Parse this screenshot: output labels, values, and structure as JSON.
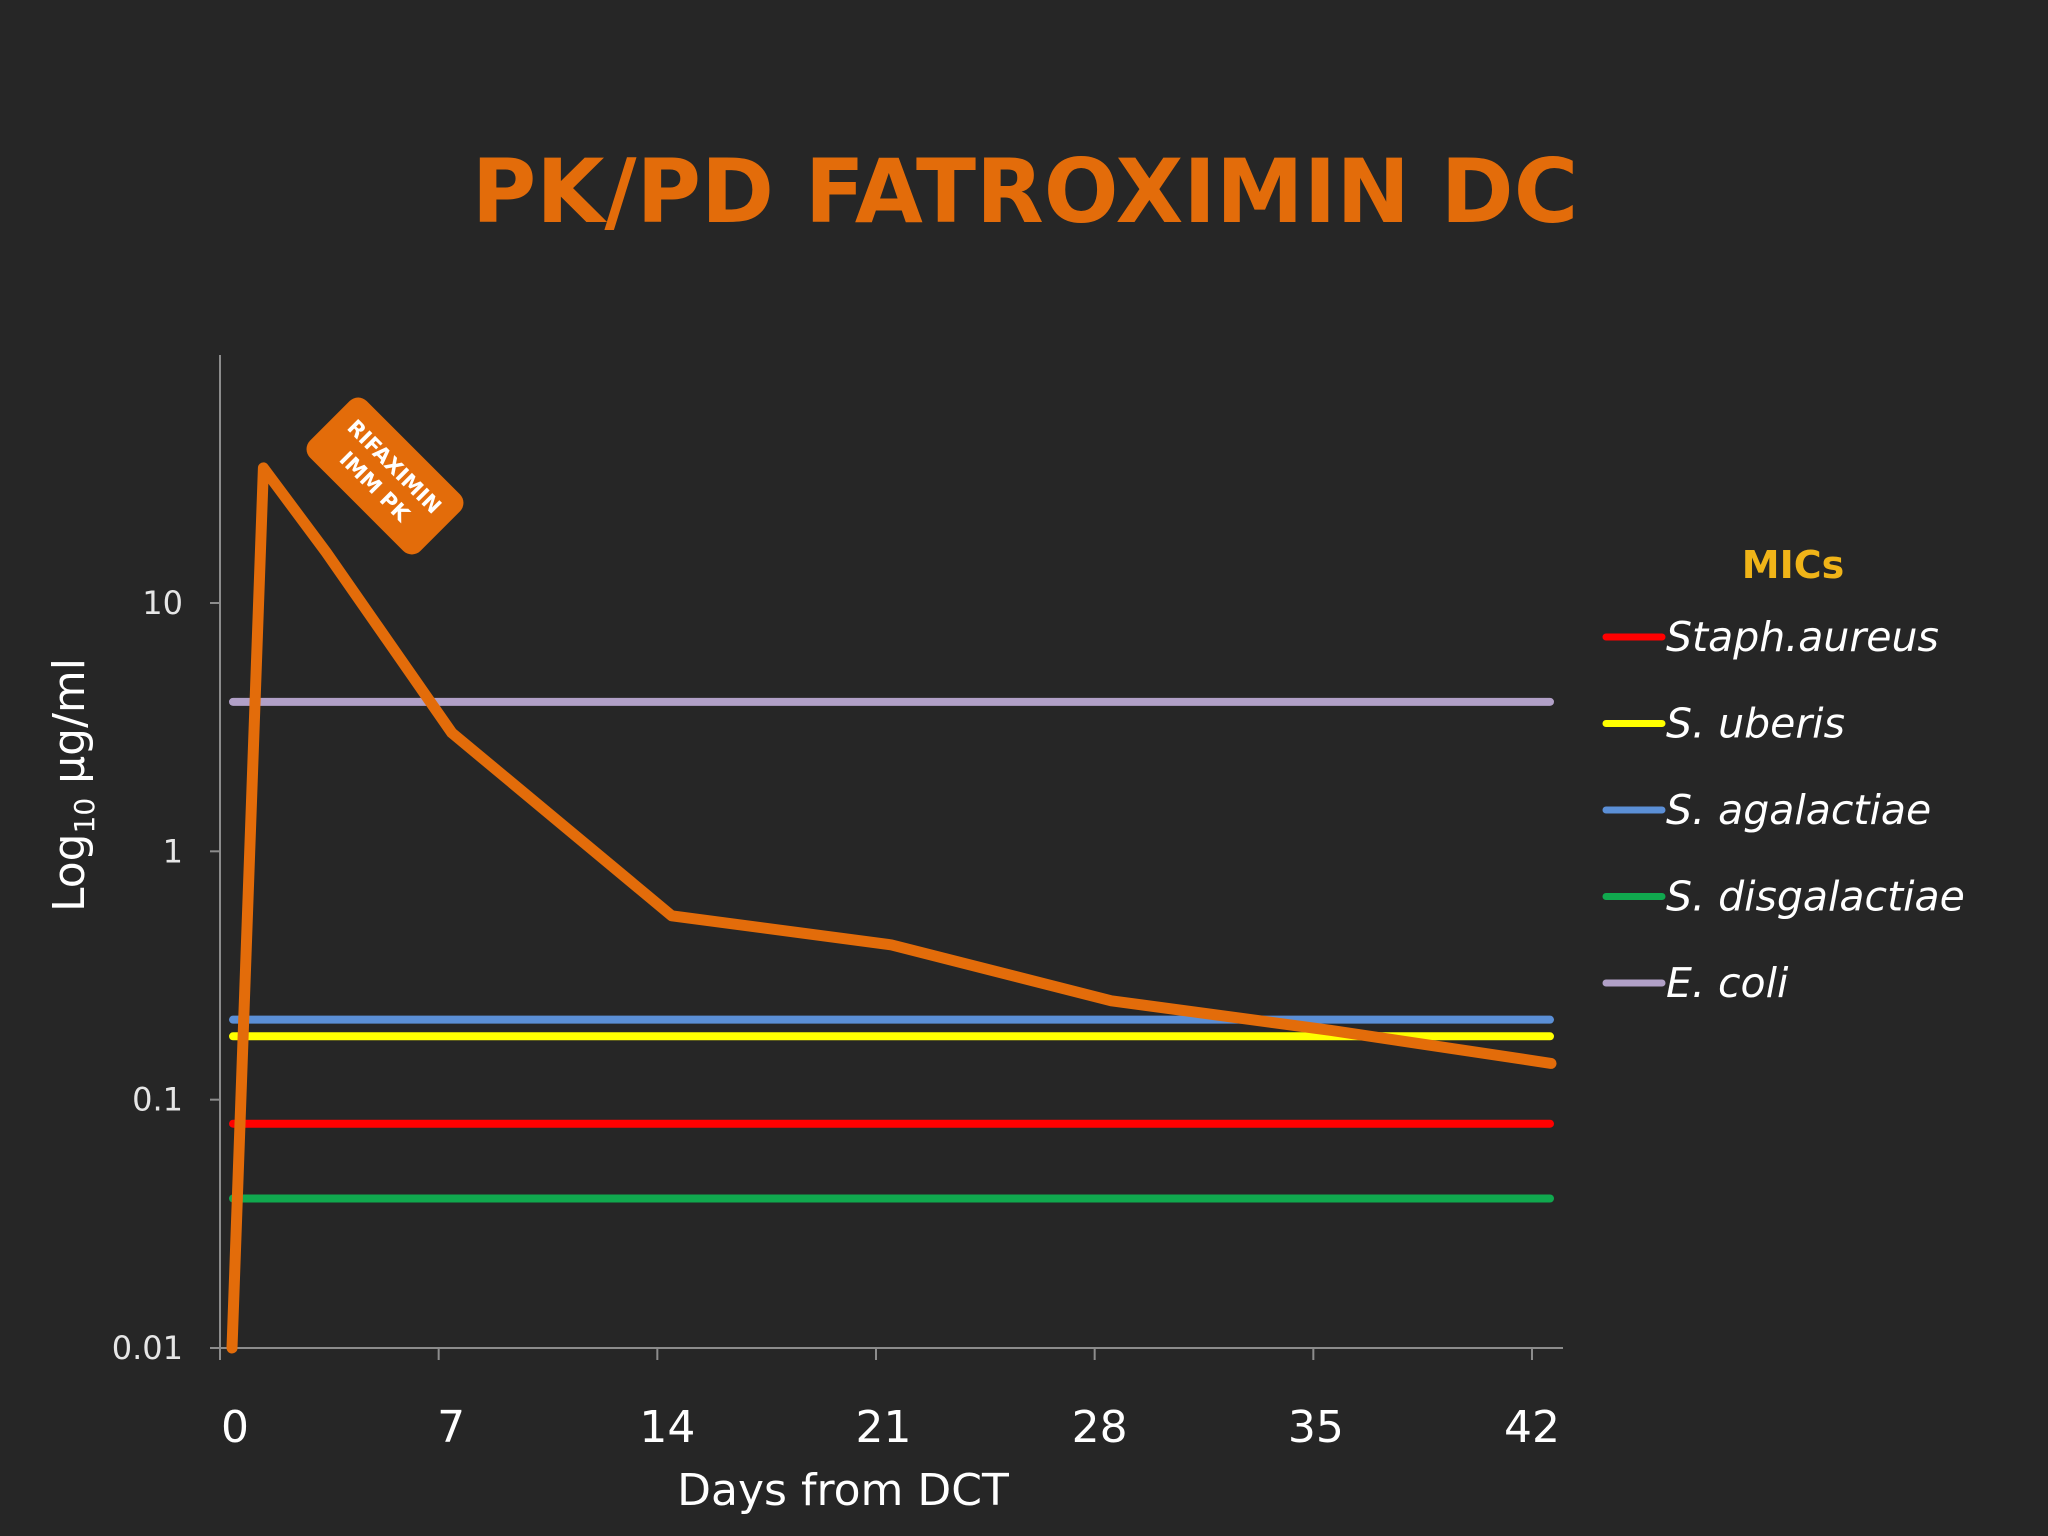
{
  "slide": {
    "title": "PK/PD FATROXIMIN DC",
    "title_color": "#e36c0a",
    "background": "#262626"
  },
  "chart_data": {
    "type": "line",
    "title": "PK/PD FATROXIMIN DC",
    "xlabel": "Days from DCT",
    "ylabel_main": "Log",
    "ylabel_sub": "10",
    "ylabel_rest": " µg/ml",
    "y_scale": "log",
    "xlim": [
      0,
      42
    ],
    "ylim": [
      0.01,
      100
    ],
    "x_ticks": [
      0,
      7,
      14,
      21,
      28,
      35,
      42
    ],
    "y_ticks": [
      {
        "value": 0.01,
        "label": "0.01"
      },
      {
        "value": 0.1,
        "label": "0.1"
      },
      {
        "value": 1,
        "label": "1"
      },
      {
        "value": 10,
        "label": "10"
      }
    ],
    "grid": false,
    "annotation": {
      "text_line1": "RIFAXIMIN",
      "text_line2": "IMM PK",
      "color": "#e36c0a"
    },
    "pk_series": {
      "name": "",
      "color": "#e36c0a",
      "x": [
        0,
        1,
        3,
        7,
        14,
        21,
        28,
        35,
        42
      ],
      "y": [
        0.01,
        35,
        16,
        3,
        0.55,
        0.42,
        0.25,
        0.19,
        0.14
      ]
    },
    "legend": {
      "title": "MICs",
      "title_color": "#f0b418",
      "placement": "right"
    },
    "mic_series": [
      {
        "name": "Staph.aureus",
        "color": "#ff0000",
        "value": 0.08
      },
      {
        "name": "S. uberis",
        "color": "#ffff00",
        "value": 0.18
      },
      {
        "name": "S. agalactiae",
        "color": "#5b8fd6",
        "value": 0.21
      },
      {
        "name": "S. disgalactiae",
        "color": "#10a84e",
        "value": 0.04
      },
      {
        "name": "E. coli",
        "color": "#b1a0c7",
        "value": 4
      }
    ]
  }
}
